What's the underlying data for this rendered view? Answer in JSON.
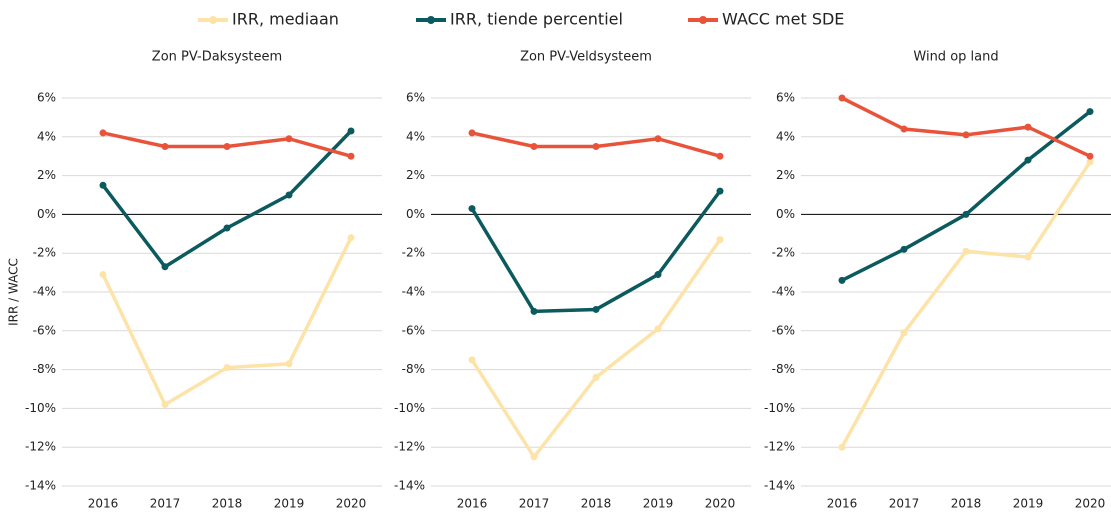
{
  "chart_data": [
    {
      "type": "line",
      "title": "Zon PV-Daksysteem",
      "ylabel": "IRR / WACC",
      "categories": [
        "2016",
        "2017",
        "2018",
        "2019",
        "2020"
      ],
      "series": [
        {
          "name": "IRR, mediaan",
          "color": "#fde3a7",
          "values": [
            -3.1,
            -9.8,
            -7.9,
            -7.7,
            -1.2
          ]
        },
        {
          "name": "IRR, tiende percentiel",
          "color": "#0b5a5e",
          "values": [
            1.5,
            -2.7,
            -0.7,
            1.0,
            4.3
          ]
        },
        {
          "name": "WACC met SDE",
          "color": "#e8533a",
          "values": [
            4.2,
            3.5,
            3.5,
            3.9,
            3.0
          ]
        }
      ],
      "ylim": [
        -14,
        6
      ],
      "yticks": [
        {
          "value": -14,
          "label": "-14%"
        },
        {
          "value": -12,
          "label": "-12%"
        },
        {
          "value": -10,
          "label": "-10%"
        },
        {
          "value": -8,
          "label": "-8%"
        },
        {
          "value": -6,
          "label": "-6%"
        },
        {
          "value": -4,
          "label": "-4%"
        },
        {
          "value": -2,
          "label": "-2%"
        },
        {
          "value": 0,
          "label": "0%"
        },
        {
          "value": 2,
          "label": "2%"
        },
        {
          "value": 4,
          "label": "4%"
        },
        {
          "value": 6,
          "label": "6%"
        }
      ],
      "grid": true
    },
    {
      "type": "line",
      "title": "Zon PV-Veldsysteem",
      "categories": [
        "2016",
        "2017",
        "2018",
        "2019",
        "2020"
      ],
      "series": [
        {
          "name": "IRR, mediaan",
          "color": "#fde3a7",
          "values": [
            -7.5,
            -12.5,
            -8.4,
            -5.9,
            -1.3
          ]
        },
        {
          "name": "IRR, tiende percentiel",
          "color": "#0b5a5e",
          "values": [
            0.3,
            -5.0,
            -4.9,
            -3.1,
            1.2
          ]
        },
        {
          "name": "WACC met SDE",
          "color": "#e8533a",
          "values": [
            4.2,
            3.5,
            3.5,
            3.9,
            3.0
          ]
        }
      ],
      "ylim": [
        -14,
        6
      ],
      "yticks": [
        {
          "value": -14,
          "label": "-14%"
        },
        {
          "value": -12,
          "label": "-12%"
        },
        {
          "value": -10,
          "label": "-10%"
        },
        {
          "value": -8,
          "label": "-8%"
        },
        {
          "value": -6,
          "label": "-6%"
        },
        {
          "value": -4,
          "label": "-4%"
        },
        {
          "value": -2,
          "label": "-2%"
        },
        {
          "value": 0,
          "label": "0%"
        },
        {
          "value": 2,
          "label": "2%"
        },
        {
          "value": 4,
          "label": "4%"
        },
        {
          "value": 6,
          "label": "6%"
        }
      ],
      "grid": true
    },
    {
      "type": "line",
      "title": "Wind op land",
      "categories": [
        "2016",
        "2017",
        "2018",
        "2019",
        "2020"
      ],
      "series": [
        {
          "name": "IRR, mediaan",
          "color": "#fde3a7",
          "values": [
            -12.0,
            -6.1,
            -1.9,
            -2.2,
            2.7
          ]
        },
        {
          "name": "IRR, tiende percentiel",
          "color": "#0b5a5e",
          "values": [
            -3.4,
            -1.8,
            0.0,
            2.8,
            5.3
          ]
        },
        {
          "name": "WACC met SDE",
          "color": "#e8533a",
          "values": [
            6.0,
            4.4,
            4.1,
            4.5,
            3.0
          ]
        }
      ],
      "ylim": [
        -14,
        6
      ],
      "yticks": [
        {
          "value": -14,
          "label": "-14%"
        },
        {
          "value": -12,
          "label": "-12%"
        },
        {
          "value": -10,
          "label": "-10%"
        },
        {
          "value": -8,
          "label": "-8%"
        },
        {
          "value": -6,
          "label": "-6%"
        },
        {
          "value": -4,
          "label": "-4%"
        },
        {
          "value": -2,
          "label": "-2%"
        },
        {
          "value": 0,
          "label": "0%"
        },
        {
          "value": 2,
          "label": "2%"
        },
        {
          "value": 4,
          "label": "4%"
        },
        {
          "value": 6,
          "label": "6%"
        }
      ],
      "grid": true
    }
  ]
}
